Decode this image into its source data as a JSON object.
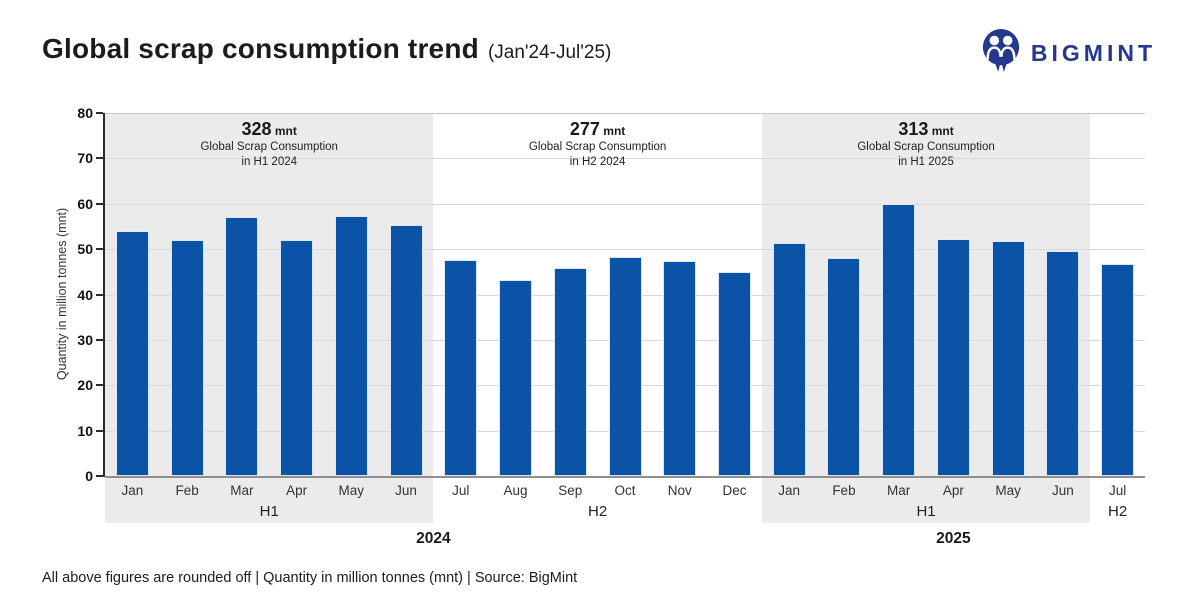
{
  "header": {
    "title": "Global scrap consumption trend",
    "subtitle": "(Jan'24-Jul'25)",
    "logo_text": "BIGMINT"
  },
  "footer": {
    "note": "All above figures are rounded off  |  Quantity in million tonnes (mnt)  |  Source: BigMint"
  },
  "colors": {
    "bar": "#0a53a6",
    "band": "#ebebeb",
    "logo_navy": "#24388f"
  },
  "chart_data": {
    "type": "bar",
    "title": "Global scrap consumption trend (Jan'24-Jul'25)",
    "ylabel": "Quantity in million tonnes (mnt)",
    "ylim": [
      0,
      80
    ],
    "yticks": [
      0,
      10,
      20,
      30,
      40,
      50,
      60,
      70,
      80
    ],
    "grid": "horizontal",
    "legend": "none",
    "categories": [
      "Jan",
      "Feb",
      "Mar",
      "Apr",
      "May",
      "Jun",
      "Jul",
      "Aug",
      "Sep",
      "Oct",
      "Nov",
      "Dec",
      "Jan",
      "Feb",
      "Mar",
      "Apr",
      "May",
      "Jun",
      "Jul"
    ],
    "values": [
      54,
      52,
      57,
      52,
      57.4,
      55.4,
      47.6,
      43.1,
      45.8,
      48.2,
      47.4,
      44.9,
      51.3,
      48,
      60,
      52.2,
      51.8,
      49.6,
      46.8
    ],
    "sections": [
      {
        "half": "H1",
        "year": "2024",
        "start": 0,
        "count": 6,
        "shaded": true,
        "annotation": {
          "value": "328",
          "unit": "mnt",
          "line1": "Global Scrap Consumption",
          "line2": "in H1 2024"
        }
      },
      {
        "half": "H2",
        "year": "2024",
        "start": 6,
        "count": 6,
        "shaded": false,
        "annotation": {
          "value": "277",
          "unit": "mnt",
          "line1": "Global Scrap Consumption",
          "line2": "in H2 2024"
        }
      },
      {
        "half": "H1",
        "year": "2025",
        "start": 12,
        "count": 6,
        "shaded": true,
        "annotation": {
          "value": "313",
          "unit": "mnt",
          "line1": "Global Scrap Consumption",
          "line2": "in H1 2025"
        }
      },
      {
        "half": "H2",
        "year": "2025",
        "start": 18,
        "count": 1,
        "shaded": false,
        "annotation": null
      }
    ],
    "year_groups": [
      {
        "label": "2024",
        "start": 0,
        "count": 12
      },
      {
        "label": "2025",
        "start": 12,
        "count": 7
      }
    ]
  }
}
